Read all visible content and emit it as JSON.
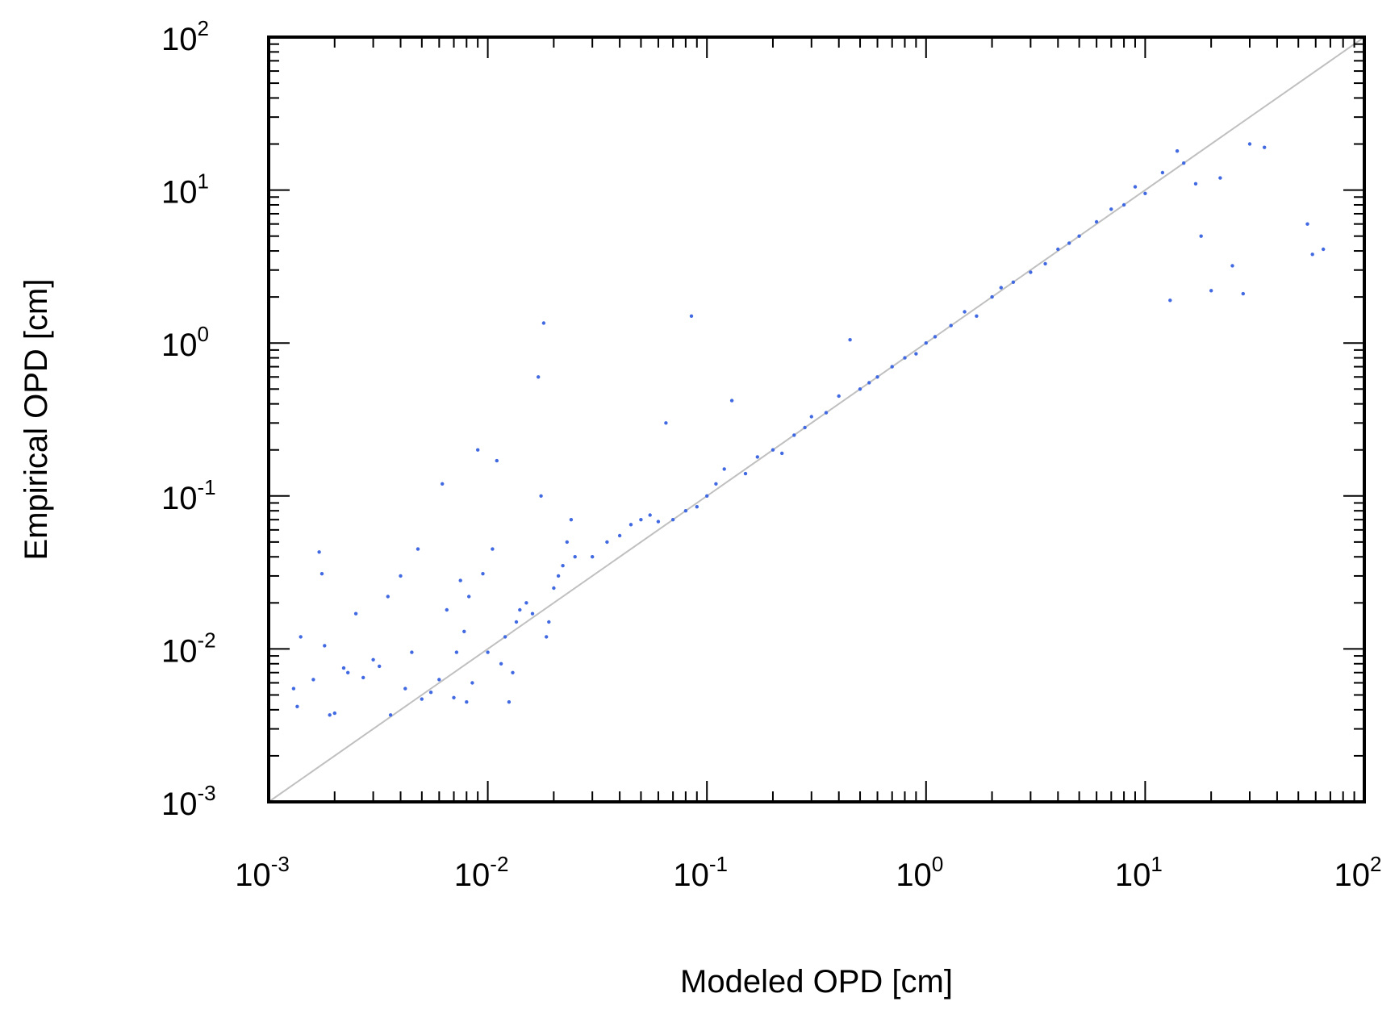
{
  "chart_data": {
    "type": "scatter",
    "xlabel": "Modeled OPD [cm]",
    "ylabel": "Empirical OPD [cm]",
    "xscale": "log",
    "yscale": "log",
    "xlim": [
      0.001,
      100
    ],
    "ylim": [
      0.001,
      100
    ],
    "x_ticks": [
      {
        "base": "10",
        "exp": "-3",
        "value": 0.001
      },
      {
        "base": "10",
        "exp": "-2",
        "value": 0.01
      },
      {
        "base": "10",
        "exp": "-1",
        "value": 0.1
      },
      {
        "base": "10",
        "exp": "0",
        "value": 1
      },
      {
        "base": "10",
        "exp": "1",
        "value": 10
      },
      {
        "base": "10",
        "exp": "2",
        "value": 100
      }
    ],
    "y_ticks": [
      {
        "base": "10",
        "exp": "-3",
        "value": 0.001
      },
      {
        "base": "10",
        "exp": "-2",
        "value": 0.01
      },
      {
        "base": "10",
        "exp": "-1",
        "value": 0.1
      },
      {
        "base": "10",
        "exp": "0",
        "value": 1
      },
      {
        "base": "10",
        "exp": "1",
        "value": 10
      },
      {
        "base": "10",
        "exp": "2",
        "value": 100
      }
    ],
    "grid": false,
    "legend": "none",
    "point_color": "#4169e1",
    "reference_line": {
      "type": "y=x",
      "color": "#c0c0c0"
    },
    "series": [
      {
        "points": [
          [
            0.0013,
            0.0055
          ],
          [
            0.00135,
            0.0042
          ],
          [
            0.0014,
            0.012
          ],
          [
            0.0016,
            0.0063
          ],
          [
            0.0017,
            0.043
          ],
          [
            0.00175,
            0.031
          ],
          [
            0.0018,
            0.0105
          ],
          [
            0.0019,
            0.0037
          ],
          [
            0.002,
            0.0038
          ],
          [
            0.0022,
            0.0075
          ],
          [
            0.0023,
            0.007
          ],
          [
            0.0025,
            0.017
          ],
          [
            0.0027,
            0.0065
          ],
          [
            0.003,
            0.0085
          ],
          [
            0.0032,
            0.0077
          ],
          [
            0.0035,
            0.022
          ],
          [
            0.0036,
            0.0037
          ],
          [
            0.004,
            0.03
          ],
          [
            0.0042,
            0.0055
          ],
          [
            0.0045,
            0.0095
          ],
          [
            0.0048,
            0.045
          ],
          [
            0.005,
            0.0047
          ],
          [
            0.0055,
            0.0052
          ],
          [
            0.006,
            0.0063
          ],
          [
            0.0062,
            0.12
          ],
          [
            0.0065,
            0.018
          ],
          [
            0.007,
            0.0048
          ],
          [
            0.0072,
            0.0095
          ],
          [
            0.0075,
            0.028
          ],
          [
            0.0078,
            0.013
          ],
          [
            0.008,
            0.0045
          ],
          [
            0.0082,
            0.022
          ],
          [
            0.0085,
            0.006
          ],
          [
            0.009,
            0.2
          ],
          [
            0.0095,
            0.031
          ],
          [
            0.01,
            0.0095
          ],
          [
            0.0105,
            0.045
          ],
          [
            0.011,
            0.17
          ],
          [
            0.0115,
            0.008
          ],
          [
            0.012,
            0.012
          ],
          [
            0.0125,
            0.0045
          ],
          [
            0.013,
            0.007
          ],
          [
            0.0135,
            0.015
          ],
          [
            0.014,
            0.018
          ],
          [
            0.015,
            0.02
          ],
          [
            0.016,
            0.017
          ],
          [
            0.017,
            0.6
          ],
          [
            0.0175,
            0.1
          ],
          [
            0.018,
            1.35
          ],
          [
            0.0185,
            0.012
          ],
          [
            0.019,
            0.015
          ],
          [
            0.02,
            0.025
          ],
          [
            0.021,
            0.03
          ],
          [
            0.022,
            0.035
          ],
          [
            0.023,
            0.05
          ],
          [
            0.024,
            0.07
          ],
          [
            0.025,
            0.04
          ],
          [
            0.03,
            0.04
          ],
          [
            0.035,
            0.05
          ],
          [
            0.04,
            0.055
          ],
          [
            0.045,
            0.065
          ],
          [
            0.05,
            0.07
          ],
          [
            0.055,
            0.075
          ],
          [
            0.06,
            0.068
          ],
          [
            0.065,
            0.3
          ],
          [
            0.07,
            0.07
          ],
          [
            0.08,
            0.08
          ],
          [
            0.085,
            1.5
          ],
          [
            0.09,
            0.085
          ],
          [
            0.1,
            0.1
          ],
          [
            0.11,
            0.12
          ],
          [
            0.12,
            0.15
          ],
          [
            0.13,
            0.42
          ],
          [
            0.15,
            0.14
          ],
          [
            0.17,
            0.18
          ],
          [
            0.2,
            0.2
          ],
          [
            0.22,
            0.19
          ],
          [
            0.25,
            0.25
          ],
          [
            0.28,
            0.28
          ],
          [
            0.3,
            0.33
          ],
          [
            0.35,
            0.35
          ],
          [
            0.4,
            0.45
          ],
          [
            0.45,
            1.05
          ],
          [
            0.5,
            0.5
          ],
          [
            0.55,
            0.55
          ],
          [
            0.6,
            0.6
          ],
          [
            0.7,
            0.7
          ],
          [
            0.8,
            0.8
          ],
          [
            0.9,
            0.85
          ],
          [
            1.0,
            1.0
          ],
          [
            1.1,
            1.1
          ],
          [
            1.3,
            1.3
          ],
          [
            1.5,
            1.6
          ],
          [
            1.7,
            1.5
          ],
          [
            2.0,
            2.0
          ],
          [
            2.2,
            2.3
          ],
          [
            2.5,
            2.5
          ],
          [
            3.0,
            2.9
          ],
          [
            3.5,
            3.3
          ],
          [
            4.0,
            4.1
          ],
          [
            4.5,
            4.5
          ],
          [
            5.0,
            5.0
          ],
          [
            6.0,
            6.2
          ],
          [
            7.0,
            7.5
          ],
          [
            8.0,
            8.0
          ],
          [
            9.0,
            10.5
          ],
          [
            10.0,
            9.5
          ],
          [
            12.0,
            13.0
          ],
          [
            13.0,
            1.9
          ],
          [
            14.0,
            18.0
          ],
          [
            15.0,
            15.0
          ],
          [
            17.0,
            11.0
          ],
          [
            18.0,
            5.0
          ],
          [
            20.0,
            2.2
          ],
          [
            22.0,
            12.0
          ],
          [
            25.0,
            3.2
          ],
          [
            28.0,
            2.1
          ],
          [
            30.0,
            20.0
          ],
          [
            35.0,
            19.0
          ],
          [
            55.0,
            6.0
          ],
          [
            58.0,
            3.8
          ],
          [
            65.0,
            4.1
          ]
        ]
      }
    ]
  }
}
